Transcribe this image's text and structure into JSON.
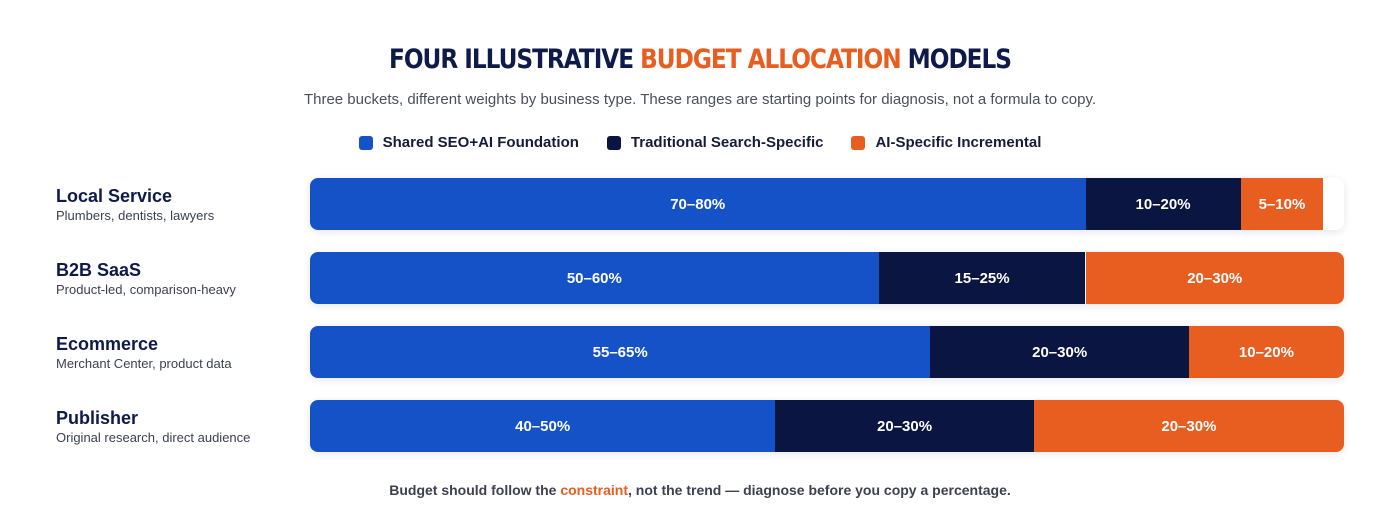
{
  "title": {
    "part1": "FOUR ILLUSTRATIVE ",
    "highlight": "BUDGET ALLOCATION",
    "part2": " MODELS"
  },
  "subtitle": "Three buckets, different weights by business type. These ranges are starting points for diagnosis, not a formula to copy.",
  "colors": {
    "shared": "#1652c7",
    "traditional": "#0b1541",
    "ai": "#e85d20"
  },
  "footer": {
    "before": "Budget should follow the ",
    "highlight": "constraint",
    "after": ", not the trend — diagnose before you copy a percentage."
  },
  "chart_data": {
    "type": "bar",
    "orientation": "horizontal-stacked",
    "legend": [
      "Shared SEO+AI Foundation",
      "Traditional Search-Specific",
      "AI-Specific Incremental"
    ],
    "legend_placement": "top-center",
    "categories": [
      "Local Service",
      "B2B SaaS",
      "Ecommerce",
      "Publisher"
    ],
    "category_descriptions": [
      "Plumbers, dentists, lawyers",
      "Product-led, comparison-heavy",
      "Merchant Center, product data",
      "Original research, direct audience"
    ],
    "series": [
      {
        "name": "Shared SEO+AI Foundation",
        "values": [
          75,
          55,
          60,
          45
        ],
        "labels": [
          "70–80%",
          "50–60%",
          "55–65%",
          "40–50%"
        ]
      },
      {
        "name": "Traditional Search-Specific",
        "values": [
          15,
          20,
          25,
          25
        ],
        "labels": [
          "10–20%",
          "15–25%",
          "20–30%",
          "20–30%"
        ]
      },
      {
        "name": "AI-Specific Incremental",
        "values": [
          8,
          25,
          15,
          30
        ],
        "labels": [
          "5–10%",
          "20–30%",
          "10–20%",
          "20–30%"
        ]
      }
    ],
    "xlim": [
      0,
      100
    ]
  }
}
